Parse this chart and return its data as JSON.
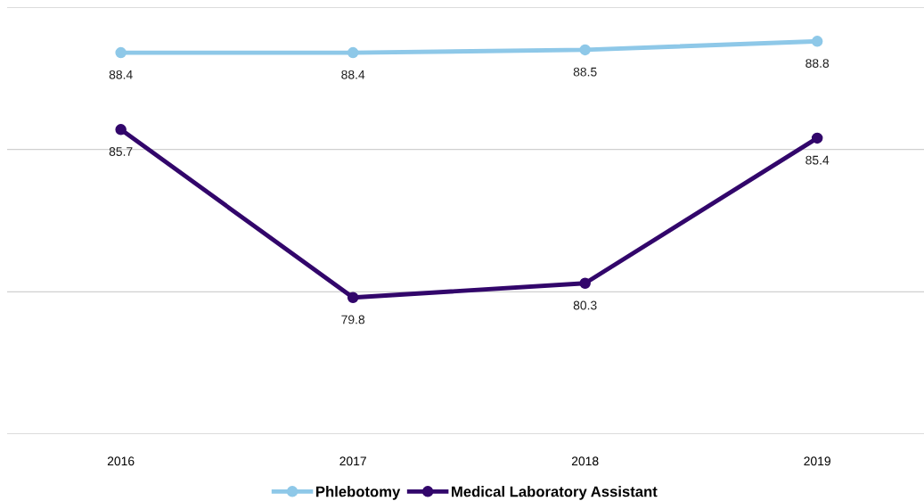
{
  "chart_data": {
    "type": "line",
    "categories": [
      "2016",
      "2017",
      "2018",
      "2019"
    ],
    "series": [
      {
        "name": "Phlebotomy",
        "color": "#8ec8e8",
        "values": [
          88.4,
          88.4,
          88.5,
          88.8
        ]
      },
      {
        "name": "Medical Laboratory Assistant",
        "color": "#32066b",
        "values": [
          85.7,
          79.8,
          80.3,
          85.4
        ]
      }
    ],
    "ylim": [
      75,
      90
    ],
    "yticks": [
      {
        "value": 75,
        "label": null
      },
      {
        "value": 80,
        "label": null
      },
      {
        "value": 85,
        "label": null
      },
      {
        "value": 90,
        "label": null
      }
    ],
    "tick_labels": "x",
    "grid": "y",
    "legend": "bottom",
    "marker": "circle",
    "line_style": "solid",
    "data_labels": true
  }
}
